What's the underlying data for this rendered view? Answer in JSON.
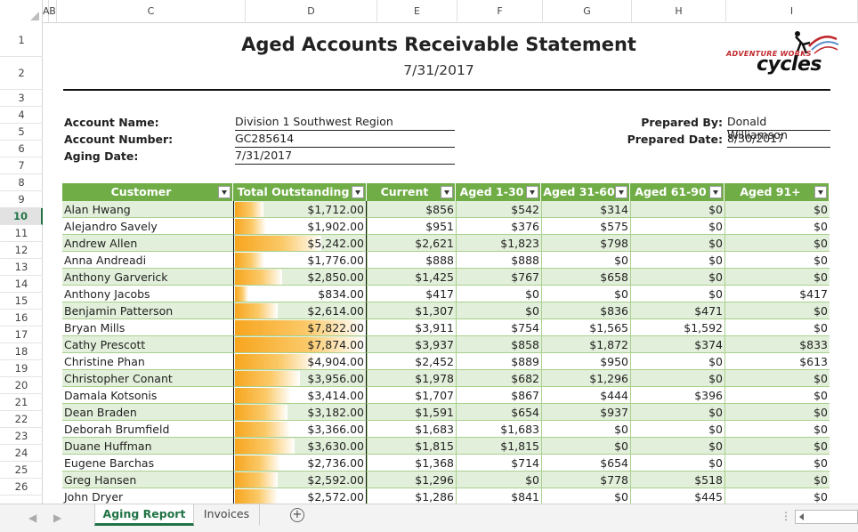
{
  "columns": [
    "A",
    "B",
    "C",
    "D",
    "E",
    "F",
    "G",
    "H",
    "I"
  ],
  "rows": [
    "1",
    "2",
    "3",
    "4",
    "5",
    "6",
    "7",
    "8",
    "9",
    "10",
    "11",
    "12",
    "13",
    "14",
    "15",
    "16",
    "17",
    "18",
    "19",
    "20",
    "21",
    "22",
    "23",
    "24",
    "25",
    "26"
  ],
  "active_row": "10",
  "report": {
    "title": "Aged Accounts Receivable Statement",
    "date": "7/31/2017"
  },
  "logo": {
    "small": "ADVENTURE WORKS",
    "big": "cycles"
  },
  "info": {
    "account_name_label": "Account Name:",
    "account_name": "Division 1 Southwest Region",
    "account_number_label": "Account Number:",
    "account_number": "GC285614",
    "aging_date_label": "Aging Date:",
    "aging_date": "7/31/2017",
    "prepared_by_label": "Prepared By:",
    "prepared_by": "Donald Williamson",
    "prepared_date_label": "Prepared Date:",
    "prepared_date": "8/30/2017"
  },
  "table": {
    "headers": [
      "Customer",
      "Total Outstanding",
      "Current",
      "Aged 1-30",
      "Aged 31-60",
      "Aged 61-90",
      "Aged 91+"
    ],
    "rows": [
      {
        "customer": "Alan Hwang",
        "total": "$1,712.00",
        "total_value": 1712,
        "current": "$856",
        "a1": "$542",
        "a2": "$314",
        "a3": "$0",
        "a4": "$0"
      },
      {
        "customer": "Alejandro Savely",
        "total": "$1,902.00",
        "total_value": 1902,
        "current": "$951",
        "a1": "$376",
        "a2": "$575",
        "a3": "$0",
        "a4": "$0"
      },
      {
        "customer": "Andrew Allen",
        "total": "$5,242.00",
        "total_value": 5242,
        "current": "$2,621",
        "a1": "$1,823",
        "a2": "$798",
        "a3": "$0",
        "a4": "$0"
      },
      {
        "customer": "Anna Andreadi",
        "total": "$1,776.00",
        "total_value": 1776,
        "current": "$888",
        "a1": "$888",
        "a2": "$0",
        "a3": "$0",
        "a4": "$0"
      },
      {
        "customer": "Anthony Garverick",
        "total": "$2,850.00",
        "total_value": 2850,
        "current": "$1,425",
        "a1": "$767",
        "a2": "$658",
        "a3": "$0",
        "a4": "$0"
      },
      {
        "customer": "Anthony Jacobs",
        "total": "$834.00",
        "total_value": 834,
        "current": "$417",
        "a1": "$0",
        "a2": "$0",
        "a3": "$0",
        "a4": "$417"
      },
      {
        "customer": "Benjamin Patterson",
        "total": "$2,614.00",
        "total_value": 2614,
        "current": "$1,307",
        "a1": "$0",
        "a2": "$836",
        "a3": "$471",
        "a4": "$0"
      },
      {
        "customer": "Bryan Mills",
        "total": "$7,822.00",
        "total_value": 7822,
        "current": "$3,911",
        "a1": "$754",
        "a2": "$1,565",
        "a3": "$1,592",
        "a4": "$0"
      },
      {
        "customer": "Cathy Prescott",
        "total": "$7,874.00",
        "total_value": 7874,
        "current": "$3,937",
        "a1": "$858",
        "a2": "$1,872",
        "a3": "$374",
        "a4": "$833"
      },
      {
        "customer": "Christine Phan",
        "total": "$4,904.00",
        "total_value": 4904,
        "current": "$2,452",
        "a1": "$889",
        "a2": "$950",
        "a3": "$0",
        "a4": "$613"
      },
      {
        "customer": "Christopher Conant",
        "total": "$3,956.00",
        "total_value": 3956,
        "current": "$1,978",
        "a1": "$682",
        "a2": "$1,296",
        "a3": "$0",
        "a4": "$0"
      },
      {
        "customer": "Damala Kotsonis",
        "total": "$3,414.00",
        "total_value": 3414,
        "current": "$1,707",
        "a1": "$867",
        "a2": "$444",
        "a3": "$396",
        "a4": "$0"
      },
      {
        "customer": "Dean Braden",
        "total": "$3,182.00",
        "total_value": 3182,
        "current": "$1,591",
        "a1": "$654",
        "a2": "$937",
        "a3": "$0",
        "a4": "$0"
      },
      {
        "customer": "Deborah Brumfield",
        "total": "$3,366.00",
        "total_value": 3366,
        "current": "$1,683",
        "a1": "$1,683",
        "a2": "$0",
        "a3": "$0",
        "a4": "$0"
      },
      {
        "customer": "Duane Huffman",
        "total": "$3,630.00",
        "total_value": 3630,
        "current": "$1,815",
        "a1": "$1,815",
        "a2": "$0",
        "a3": "$0",
        "a4": "$0"
      },
      {
        "customer": "Eugene Barchas",
        "total": "$2,736.00",
        "total_value": 2736,
        "current": "$1,368",
        "a1": "$714",
        "a2": "$654",
        "a3": "$0",
        "a4": "$0"
      },
      {
        "customer": "Greg Hansen",
        "total": "$2,592.00",
        "total_value": 2592,
        "current": "$1,296",
        "a1": "$0",
        "a2": "$778",
        "a3": "$518",
        "a4": "$0"
      },
      {
        "customer": "John Dryer",
        "total": "$2,572.00",
        "total_value": 2572,
        "current": "$1,286",
        "a1": "$841",
        "a2": "$0",
        "a3": "$445",
        "a4": "$0"
      }
    ]
  },
  "tabs": {
    "active": "Aging Report",
    "other": "Invoices"
  },
  "colors": {
    "header_green": "#70ad47",
    "band_green": "#e2efda",
    "accent": "#217346",
    "bar_orange": "#f7a51e"
  }
}
